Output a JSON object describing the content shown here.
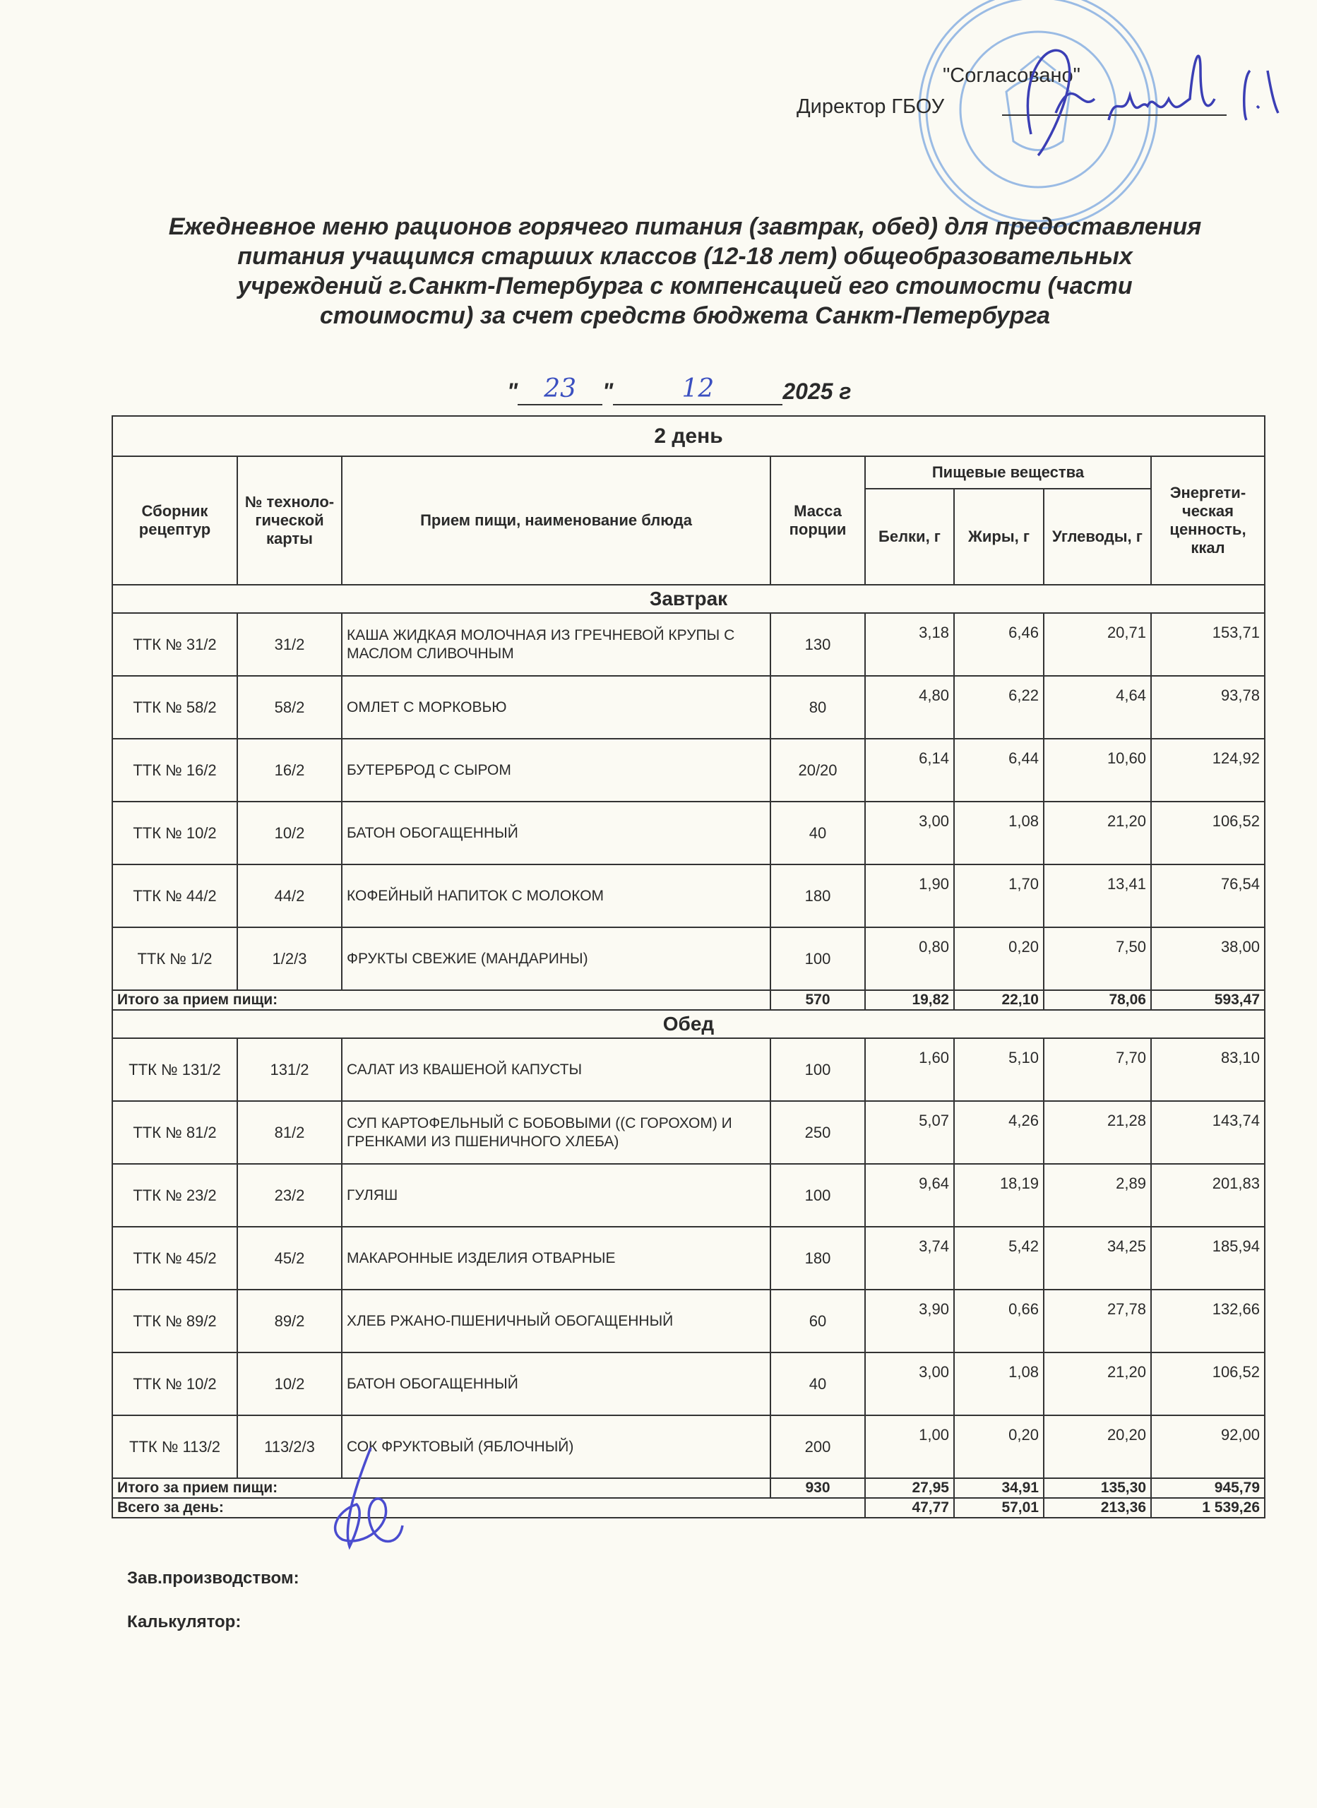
{
  "approval": {
    "approved_label": "\"Согласовано\"",
    "director_label": "Директор ГБОУ"
  },
  "title": {
    "line1": "Ежедневное меню рационов горячего питания (завтрак, обед) для предоставления",
    "line2": "питания  учащимся старших классов (12-18 лет) общеобразовательных",
    "line3": "учреждений г.Санкт-Петербурга с компенсацией его стоимости (части",
    "line4": "стоимости) за счет средств бюджета Санкт-Петербурга"
  },
  "date": {
    "quote_open": "\"",
    "day": "23",
    "quote_close": "\"",
    "month": "12",
    "year": "2025 г"
  },
  "table": {
    "day_title": "2 день",
    "headers": {
      "collection": "Сборник рецептур",
      "card_no": "№ техноло-гической карты",
      "dish": "Прием пищи, наименование блюда",
      "mass": "Масса порции",
      "nutrients": "Пищевые вещества",
      "proteins": "Белки, г",
      "fats": "Жиры, г",
      "carbs": "Углеводы, г",
      "energy": "Энергети-ческая ценность, ккал"
    },
    "sections": [
      {
        "name": "Завтрак",
        "rows": [
          {
            "collection": "ТТК № 31/2",
            "card": "31/2",
            "dish": "КАША ЖИДКАЯ МОЛОЧНАЯ ИЗ ГРЕЧНЕВОЙ КРУПЫ С МАСЛОМ СЛИВОЧНЫМ",
            "mass": "130",
            "proteins": "3,18",
            "fats": "6,46",
            "carbs": "20,71",
            "energy": "153,71"
          },
          {
            "collection": "ТТК № 58/2",
            "card": "58/2",
            "dish": "ОМЛЕТ С МОРКОВЬЮ",
            "mass": "80",
            "proteins": "4,80",
            "fats": "6,22",
            "carbs": "4,64",
            "energy": "93,78"
          },
          {
            "collection": "ТТК № 16/2",
            "card": "16/2",
            "dish": "БУТЕРБРОД С СЫРОМ",
            "mass": "20/20",
            "proteins": "6,14",
            "fats": "6,44",
            "carbs": "10,60",
            "energy": "124,92"
          },
          {
            "collection": "ТТК № 10/2",
            "card": "10/2",
            "dish": "БАТОН ОБОГАЩЕННЫЙ",
            "mass": "40",
            "proteins": "3,00",
            "fats": "1,08",
            "carbs": "21,20",
            "energy": "106,52"
          },
          {
            "collection": "ТТК № 44/2",
            "card": "44/2",
            "dish": "КОФЕЙНЫЙ НАПИТОК С МОЛОКОМ",
            "mass": "180",
            "proteins": "1,90",
            "fats": "1,70",
            "carbs": "13,41",
            "energy": "76,54"
          },
          {
            "collection": "ТТК № 1/2",
            "card": "1/2/3",
            "dish": "ФРУКТЫ СВЕЖИЕ (МАНДАРИНЫ)",
            "mass": "100",
            "proteins": "0,80",
            "fats": "0,20",
            "carbs": "7,50",
            "energy": "38,00"
          }
        ],
        "total": {
          "label": "Итого за прием пищи:",
          "mass": "570",
          "proteins": "19,82",
          "fats": "22,10",
          "carbs": "78,06",
          "energy": "593,47"
        }
      },
      {
        "name": "Обед",
        "rows": [
          {
            "collection": "ТТК № 131/2",
            "card": "131/2",
            "dish": "САЛАТ ИЗ КВАШЕНОЙ КАПУСТЫ",
            "mass": "100",
            "proteins": "1,60",
            "fats": "5,10",
            "carbs": "7,70",
            "energy": "83,10"
          },
          {
            "collection": "ТТК № 81/2",
            "card": "81/2",
            "dish": "СУП КАРТОФЕЛЬНЫЙ С БОБОВЫМИ ((С ГОРОХОМ) И ГРЕНКАМИ ИЗ ПШЕНИЧНОГО ХЛЕБА)",
            "mass": "250",
            "proteins": "5,07",
            "fats": "4,26",
            "carbs": "21,28",
            "energy": "143,74"
          },
          {
            "collection": "ТТК № 23/2",
            "card": "23/2",
            "dish": "ГУЛЯШ",
            "mass": "100",
            "proteins": "9,64",
            "fats": "18,19",
            "carbs": "2,89",
            "energy": "201,83"
          },
          {
            "collection": "ТТК № 45/2",
            "card": "45/2",
            "dish": "МАКАРОННЫЕ ИЗДЕЛИЯ ОТВАРНЫЕ",
            "mass": "180",
            "proteins": "3,74",
            "fats": "5,42",
            "carbs": "34,25",
            "energy": "185,94"
          },
          {
            "collection": "ТТК № 89/2",
            "card": "89/2",
            "dish": "ХЛЕБ РЖАНО-ПШЕНИЧНЫЙ ОБОГАЩЕННЫЙ",
            "mass": "60",
            "proteins": "3,90",
            "fats": "0,66",
            "carbs": "27,78",
            "energy": "132,66"
          },
          {
            "collection": "ТТК № 10/2",
            "card": "10/2",
            "dish": "БАТОН ОБОГАЩЕННЫЙ",
            "mass": "40",
            "proteins": "3,00",
            "fats": "1,08",
            "carbs": "21,20",
            "energy": "106,52"
          },
          {
            "collection": "ТТК № 113/2",
            "card": "113/2/3",
            "dish": "СОК ФРУКТОВЫЙ (ЯБЛОЧНЫЙ)",
            "mass": "200",
            "proteins": "1,00",
            "fats": "0,20",
            "carbs": "20,20",
            "energy": "92,00"
          }
        ],
        "total": {
          "label": "Итого за прием пищи:",
          "mass": "930",
          "proteins": "27,95",
          "fats": "34,91",
          "carbs": "135,30",
          "energy": "945,79"
        }
      }
    ],
    "day_total": {
      "label": "Всего за день:",
      "proteins": "47,77",
      "fats": "57,01",
      "carbs": "213,36",
      "energy": "1 539,26"
    }
  },
  "footer": {
    "production_manager": "Зав.производством:",
    "calculator": "Калькулятор:"
  },
  "colors": {
    "stamp": "#5b8fd6",
    "signature": "#3b3fb5",
    "paper": "#fbfaf3"
  }
}
